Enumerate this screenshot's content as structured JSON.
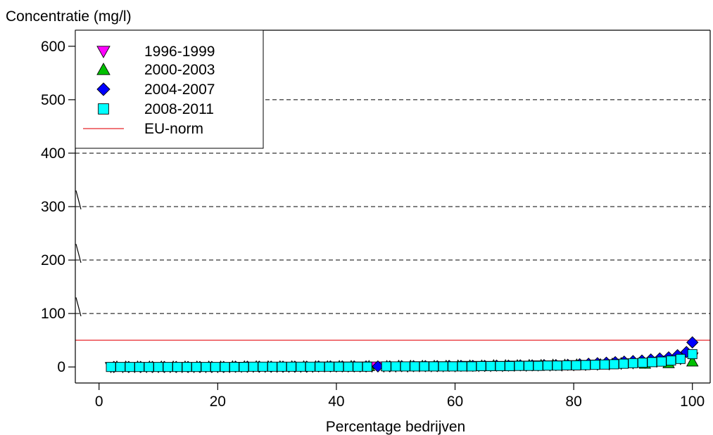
{
  "chart_data": {
    "type": "scatter",
    "title": "",
    "ylabel": "Concentratie (mg/l)",
    "xlabel": "Percentage bedrijven",
    "xlim": [
      -4,
      103
    ],
    "ylim": [
      -30,
      630
    ],
    "xticks": [
      0,
      20,
      40,
      60,
      80,
      100
    ],
    "yticks": [
      0,
      100,
      200,
      300,
      400,
      500,
      600
    ],
    "x_tick_labels": [
      "0",
      "20",
      "40",
      "60",
      "80",
      "100"
    ],
    "y_tick_labels": [
      "0",
      "100",
      "200",
      "300",
      "400",
      "500",
      "600"
    ],
    "grid": "horizontal dashed at 100-500",
    "legend_position": "top-left",
    "reference_line": {
      "name": "EU-norm",
      "value": 50,
      "color": "#e8262b"
    },
    "series": [
      {
        "name": "1996-1999",
        "marker": "triangle-down",
        "color": "#ff00ff",
        "x": [
          2,
          4,
          6,
          8,
          10,
          12,
          14,
          16,
          18,
          20,
          22,
          24,
          26,
          28,
          30,
          32,
          34,
          36,
          38,
          40,
          42,
          44,
          46,
          48,
          50,
          52,
          54,
          56,
          58,
          60,
          62,
          64,
          66,
          68,
          70,
          72,
          74,
          76,
          78,
          80,
          82,
          84,
          86,
          88,
          90,
          92,
          94,
          96,
          98,
          100
        ],
        "y": [
          0,
          0,
          0,
          0,
          0,
          0,
          0,
          0,
          0,
          0,
          0,
          0.5,
          0.5,
          0.5,
          0.5,
          0.5,
          0.5,
          0.5,
          1,
          1,
          1,
          1,
          1,
          1,
          1,
          1,
          1.5,
          1.5,
          1.5,
          1.5,
          2,
          2,
          2,
          2,
          2.5,
          2.5,
          3,
          3,
          3,
          3.5,
          4,
          4.5,
          5,
          6,
          7,
          8,
          10,
          12,
          15,
          18
        ]
      },
      {
        "name": "2000-2003",
        "marker": "triangle-up",
        "color": "#00c000",
        "x": [
          3,
          4.5,
          6.5,
          8.5,
          10.5,
          12.5,
          14.5,
          16.5,
          18.5,
          20.5,
          22.5,
          24.5,
          26.5,
          28.5,
          30.5,
          32.5,
          34.5,
          36.5,
          38.5,
          40.5,
          42.5,
          45.5,
          48.5,
          50.5,
          52.5,
          54.5,
          56.5,
          58.5,
          60.5,
          62.5,
          64.5,
          66.5,
          68.5,
          70.5,
          72.5,
          74.5,
          76.5,
          78.5,
          80.5,
          82.5,
          84.5,
          86.5,
          88,
          92,
          96,
          100
        ],
        "y": [
          0.5,
          0.5,
          0.5,
          0.5,
          0.5,
          0.5,
          0.5,
          0.5,
          0.5,
          0.5,
          1,
          1,
          1,
          1,
          1,
          1,
          1,
          1,
          1,
          1.5,
          1.5,
          1.5,
          1.5,
          2,
          2,
          2,
          2,
          2,
          2.5,
          2.5,
          2.5,
          3,
          3,
          3,
          3.5,
          3.5,
          4,
          4,
          4.5,
          5,
          5,
          6,
          7,
          6,
          7,
          10
        ]
      },
      {
        "name": "2004-2007",
        "marker": "diamond",
        "color": "#0000ff",
        "x": [
          2.5,
          5,
          7,
          9,
          11,
          13,
          15,
          17,
          19,
          21,
          23,
          25,
          27,
          29,
          31,
          33,
          35,
          37,
          39,
          41,
          43,
          45,
          47,
          49,
          51,
          53,
          55,
          57,
          59,
          61,
          63,
          65,
          67,
          69,
          71,
          73,
          75,
          77,
          79,
          81,
          82.5,
          84,
          85.5,
          87,
          88.5,
          90,
          91.5,
          93,
          94.5,
          96,
          97.5,
          99,
          100
        ],
        "y": [
          0,
          0,
          0,
          0,
          0,
          0,
          0,
          0,
          0,
          0,
          0.5,
          0.5,
          0.5,
          0.5,
          0.5,
          0.5,
          0.5,
          1,
          1,
          1,
          1,
          1,
          1,
          1,
          1.5,
          1.5,
          1.5,
          1.5,
          2,
          2,
          2,
          2,
          2.5,
          2.5,
          3,
          3,
          3.5,
          3.5,
          4,
          5,
          6,
          7,
          8,
          9,
          10,
          11,
          12,
          14,
          16,
          18,
          22,
          28,
          46
        ]
      },
      {
        "name": "2008-2011",
        "marker": "square",
        "color": "#00ffff",
        "x": [
          2,
          3.6,
          5.2,
          6.8,
          8.4,
          10,
          11.6,
          13.2,
          14.8,
          16.4,
          18,
          19.6,
          21.2,
          22.8,
          24.4,
          26,
          27.6,
          29.2,
          30.8,
          32.4,
          34,
          35.6,
          37.2,
          38.8,
          40.4,
          42,
          43.6,
          45.2,
          48.4,
          50,
          51.6,
          53.2,
          54.8,
          56.4,
          58,
          59.6,
          61.2,
          62.8,
          64.4,
          66,
          67.6,
          69.2,
          70.8,
          72.4,
          74,
          75.6,
          77.2,
          78.8,
          80.4,
          82,
          83.6,
          85.2,
          86.8,
          88.4,
          90,
          91.6,
          93.2,
          94.8,
          96.4,
          98,
          100
        ],
        "y": [
          0,
          0,
          0,
          0,
          0,
          0,
          0,
          0,
          0,
          0,
          0,
          0,
          0,
          0,
          0,
          0.5,
          0.5,
          0.5,
          0.5,
          0.5,
          0.5,
          0.5,
          0.5,
          0.5,
          0.5,
          0.5,
          0.5,
          0.5,
          1,
          1,
          1,
          1,
          1,
          1,
          1,
          1,
          1,
          1,
          1.5,
          1.5,
          1.5,
          1.5,
          2,
          2,
          2,
          2.5,
          2.5,
          3,
          3,
          3.5,
          4,
          4.5,
          5,
          6,
          7,
          8,
          9,
          10,
          12,
          15,
          24
        ]
      }
    ]
  }
}
